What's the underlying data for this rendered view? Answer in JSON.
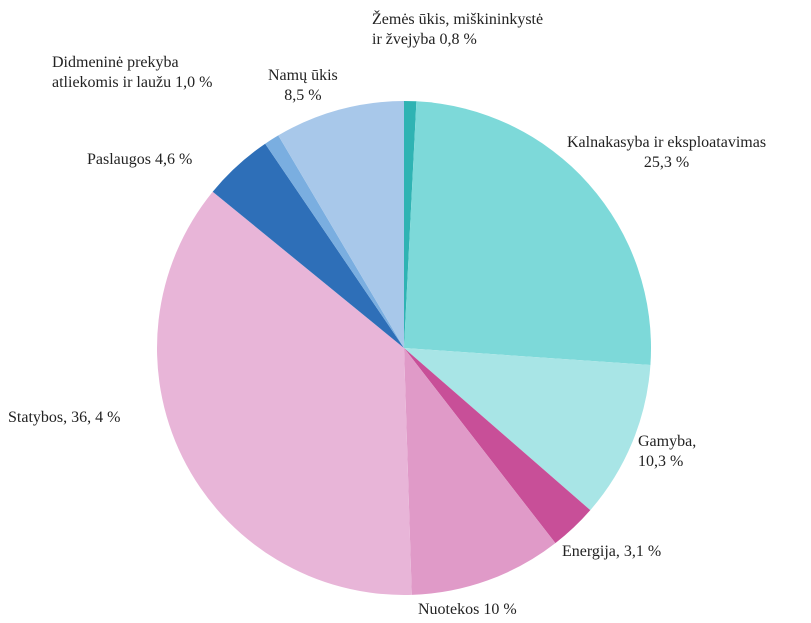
{
  "chart_data": {
    "type": "pie",
    "categories": [
      "Žemės ūkis, miškininkystė\nir žvejyba",
      "Kalnakasyba ir eksploatavimas",
      "Gamyba,",
      "Energija,",
      "Nuotekos",
      "Statybos,",
      "Paslaugos",
      "Didmeninė prekyba\natliekomis ir laužu",
      "Namų ūkis"
    ],
    "values": [
      0.8,
      25.3,
      10.3,
      3.1,
      10,
      36.4,
      4.6,
      1.0,
      8.5
    ],
    "value_labels": [
      "0,8 %",
      "25,3 %",
      "10,3 %",
      "3,1 %",
      "10 %",
      "36, 4 %",
      "4,6 %",
      "1,0 %",
      "8,5 %"
    ],
    "colors": [
      "#2fb3b3",
      "#7dd9d9",
      "#a8e5e6",
      "#c84f98",
      "#e09ac8",
      "#e8b5d8",
      "#2e6fb8",
      "#7aaee0",
      "#a8c8ea"
    ]
  }
}
